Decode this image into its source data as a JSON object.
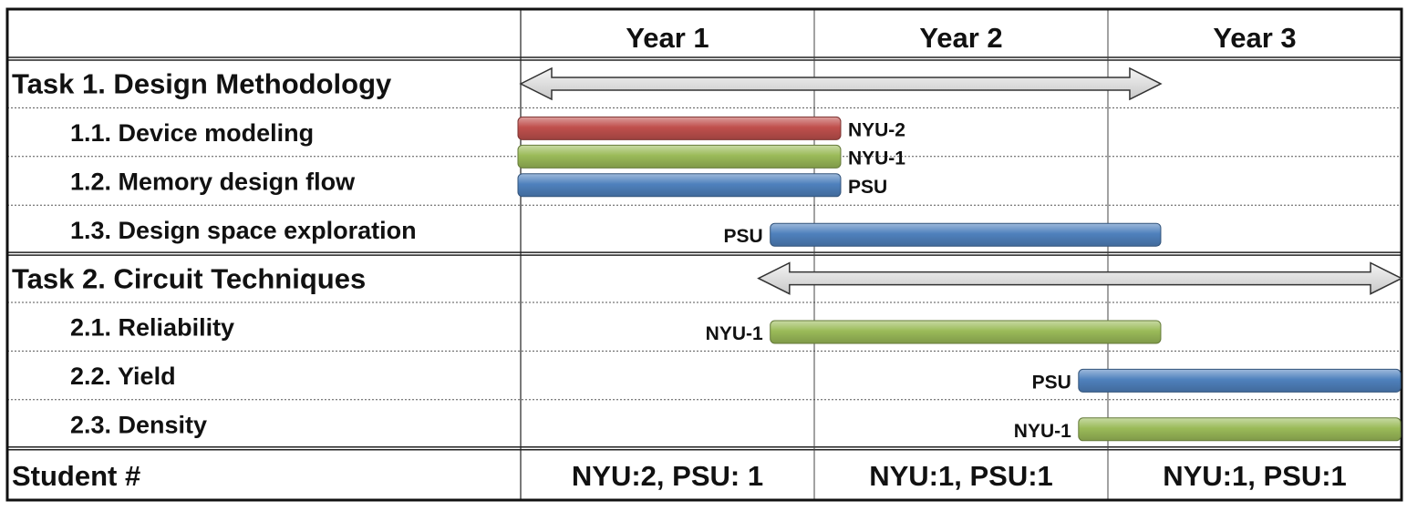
{
  "chart_data": {
    "type": "gantt",
    "x_unit": "year",
    "xlim": [
      0,
      3
    ],
    "columns": [
      "Year 1",
      "Year 2",
      "Year 3"
    ],
    "tasks": [
      {
        "label": "Task 1. Design Methodology",
        "span": [
          0,
          2.18
        ],
        "subtasks": [
          {
            "label": "1.1. Device modeling",
            "bars": [
              {
                "who": "NYU-2",
                "start": 0,
                "end": 1.09,
                "color": "#c0504d"
              },
              {
                "who": "NYU-1",
                "start": 0,
                "end": 1.09,
                "color": "#9bbb59"
              }
            ]
          },
          {
            "label": "1.2. Memory design flow",
            "bars": [
              {
                "who": "PSU",
                "start": 0,
                "end": 1.09,
                "color": "#4f81bd"
              }
            ]
          },
          {
            "label": "1.3. Design space exploration",
            "bars": [
              {
                "who": "PSU",
                "start": 0.85,
                "end": 2.18,
                "color": "#4f81bd"
              }
            ]
          }
        ]
      },
      {
        "label": "Task 2. Circuit Techniques",
        "span": [
          0.81,
          3
        ],
        "subtasks": [
          {
            "label": "2.1. Reliability",
            "bars": [
              {
                "who": "NYU-1",
                "start": 0.85,
                "end": 2.18,
                "color": "#9bbb59"
              }
            ]
          },
          {
            "label": "2.2. Yield",
            "bars": [
              {
                "who": "PSU",
                "start": 1.9,
                "end": 3,
                "color": "#4f81bd"
              }
            ]
          },
          {
            "label": "2.3. Density",
            "bars": [
              {
                "who": "NYU-1",
                "start": 1.9,
                "end": 3,
                "color": "#9bbb59"
              }
            ]
          }
        ]
      }
    ],
    "footer": {
      "label": "Student #",
      "values": [
        "NYU:2, PSU: 1",
        "NYU:1, PSU:1",
        "NYU:1, PSU:1"
      ]
    }
  }
}
